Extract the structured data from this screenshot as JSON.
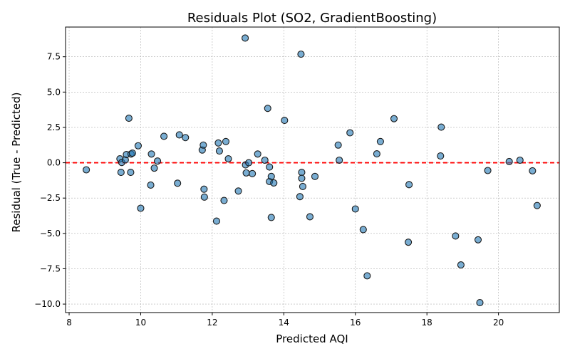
{
  "chart_data": {
    "type": "scatter",
    "title": "Residuals Plot (SO2, GradientBoosting)",
    "xlabel": "Predicted AQI",
    "ylabel": "Residual (True - Predicted)",
    "xlim": [
      7.9,
      21.7
    ],
    "ylim": [
      -10.6,
      9.6
    ],
    "xticks": [
      8,
      10,
      12,
      14,
      16,
      18,
      20
    ],
    "yticks": [
      -10.0,
      -7.5,
      -5.0,
      -2.5,
      0.0,
      2.5,
      5.0,
      7.5
    ],
    "xtick_labels": [
      "8",
      "10",
      "12",
      "14",
      "16",
      "18",
      "20"
    ],
    "ytick_labels": [
      "−10.0",
      "−7.5",
      "−5.0",
      "−2.5",
      "0.0",
      "2.5",
      "5.0",
      "7.5"
    ],
    "grid": true,
    "reference_line": {
      "y": 0,
      "color": "#ff0000",
      "style": "dashed"
    },
    "marker_color": "#1f77b4",
    "marker_edge_color": "#1a1a1a",
    "points": [
      {
        "x": 8.48,
        "y": -0.5
      },
      {
        "x": 9.42,
        "y": 0.28
      },
      {
        "x": 9.45,
        "y": -0.68
      },
      {
        "x": 9.47,
        "y": 0.02
      },
      {
        "x": 9.57,
        "y": 0.2
      },
      {
        "x": 9.6,
        "y": 0.58
      },
      {
        "x": 9.67,
        "y": 3.15
      },
      {
        "x": 9.72,
        "y": -0.68
      },
      {
        "x": 9.73,
        "y": 0.62
      },
      {
        "x": 9.77,
        "y": 0.68
      },
      {
        "x": 9.93,
        "y": 1.2
      },
      {
        "x": 10.0,
        "y": -3.22
      },
      {
        "x": 10.28,
        "y": -1.58
      },
      {
        "x": 10.3,
        "y": 0.62
      },
      {
        "x": 10.38,
        "y": -0.38
      },
      {
        "x": 10.47,
        "y": 0.12
      },
      {
        "x": 10.65,
        "y": 1.87
      },
      {
        "x": 11.03,
        "y": -1.45
      },
      {
        "x": 11.08,
        "y": 1.97
      },
      {
        "x": 11.25,
        "y": 1.78
      },
      {
        "x": 11.72,
        "y": 0.9
      },
      {
        "x": 11.75,
        "y": 1.25
      },
      {
        "x": 11.77,
        "y": -1.87
      },
      {
        "x": 11.78,
        "y": -2.43
      },
      {
        "x": 12.12,
        "y": -4.13
      },
      {
        "x": 12.17,
        "y": 1.4
      },
      {
        "x": 12.2,
        "y": 0.83
      },
      {
        "x": 12.33,
        "y": -2.67
      },
      {
        "x": 12.38,
        "y": 1.5
      },
      {
        "x": 12.45,
        "y": 0.28
      },
      {
        "x": 12.73,
        "y": -2.0
      },
      {
        "x": 12.92,
        "y": 8.82
      },
      {
        "x": 12.93,
        "y": -0.15
      },
      {
        "x": 12.95,
        "y": -0.72
      },
      {
        "x": 13.02,
        "y": 0.0
      },
      {
        "x": 13.12,
        "y": -0.77
      },
      {
        "x": 13.27,
        "y": 0.62
      },
      {
        "x": 13.47,
        "y": 0.18
      },
      {
        "x": 13.55,
        "y": 3.85
      },
      {
        "x": 13.6,
        "y": -1.33
      },
      {
        "x": 13.6,
        "y": -0.3
      },
      {
        "x": 13.65,
        "y": -0.97
      },
      {
        "x": 13.65,
        "y": -3.87
      },
      {
        "x": 13.72,
        "y": -1.43
      },
      {
        "x": 14.02,
        "y": 3.0
      },
      {
        "x": 14.45,
        "y": -2.4
      },
      {
        "x": 14.48,
        "y": 7.68
      },
      {
        "x": 14.5,
        "y": -0.68
      },
      {
        "x": 14.5,
        "y": -1.1
      },
      {
        "x": 14.53,
        "y": -1.68
      },
      {
        "x": 14.73,
        "y": -3.82
      },
      {
        "x": 14.87,
        "y": -0.97
      },
      {
        "x": 15.52,
        "y": 1.25
      },
      {
        "x": 15.55,
        "y": 0.18
      },
      {
        "x": 15.85,
        "y": 2.12
      },
      {
        "x": 16.0,
        "y": -3.27
      },
      {
        "x": 16.22,
        "y": -4.73
      },
      {
        "x": 16.33,
        "y": -8.0
      },
      {
        "x": 16.6,
        "y": 0.63
      },
      {
        "x": 16.7,
        "y": 1.5
      },
      {
        "x": 17.08,
        "y": 3.12
      },
      {
        "x": 17.48,
        "y": -5.62
      },
      {
        "x": 17.5,
        "y": -1.55
      },
      {
        "x": 18.38,
        "y": 0.48
      },
      {
        "x": 18.4,
        "y": 2.52
      },
      {
        "x": 18.8,
        "y": -5.18
      },
      {
        "x": 18.95,
        "y": -7.23
      },
      {
        "x": 19.43,
        "y": -5.45
      },
      {
        "x": 19.48,
        "y": -9.9
      },
      {
        "x": 19.7,
        "y": -0.55
      },
      {
        "x": 20.3,
        "y": 0.08
      },
      {
        "x": 20.6,
        "y": 0.18
      },
      {
        "x": 20.95,
        "y": -0.57
      },
      {
        "x": 21.08,
        "y": -3.03
      }
    ]
  }
}
